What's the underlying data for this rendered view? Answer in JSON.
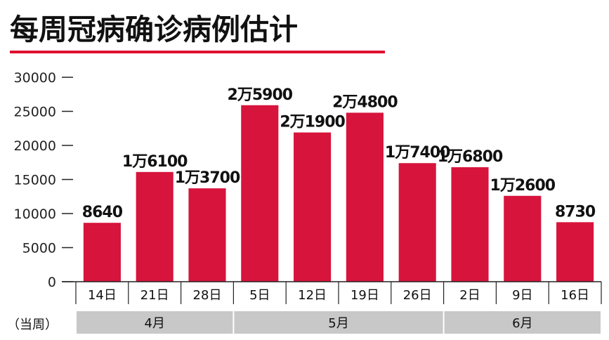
{
  "chart_data": {
    "type": "bar",
    "title": "每周冠病确诊病例估计",
    "categories": [
      "14日",
      "21日",
      "28日",
      "5日",
      "12日",
      "19日",
      "26日",
      "2日",
      "9日",
      "16日"
    ],
    "values": [
      8640,
      16100,
      13700,
      25900,
      21900,
      24800,
      17400,
      16800,
      12600,
      8730
    ],
    "data_labels": [
      "8640",
      "1万6100",
      "1万3700",
      "2万5900",
      "2万1900",
      "2万4800",
      "1万7400",
      "1万6800",
      "1万2600",
      "8730"
    ],
    "ylim": [
      0,
      30000
    ],
    "yticks": [
      "0",
      "5000",
      "10000",
      "15000",
      "20000",
      "25000",
      "30000"
    ],
    "xlabel": "",
    "ylabel": "",
    "grid": false,
    "bar_color": "#d7143c",
    "accent_color": "#e0102f",
    "group_row_label": "（当周）",
    "groups": [
      {
        "label": "4月",
        "count": 3
      },
      {
        "label": "5月",
        "count": 4
      },
      {
        "label": "6月",
        "count": 3
      }
    ]
  }
}
